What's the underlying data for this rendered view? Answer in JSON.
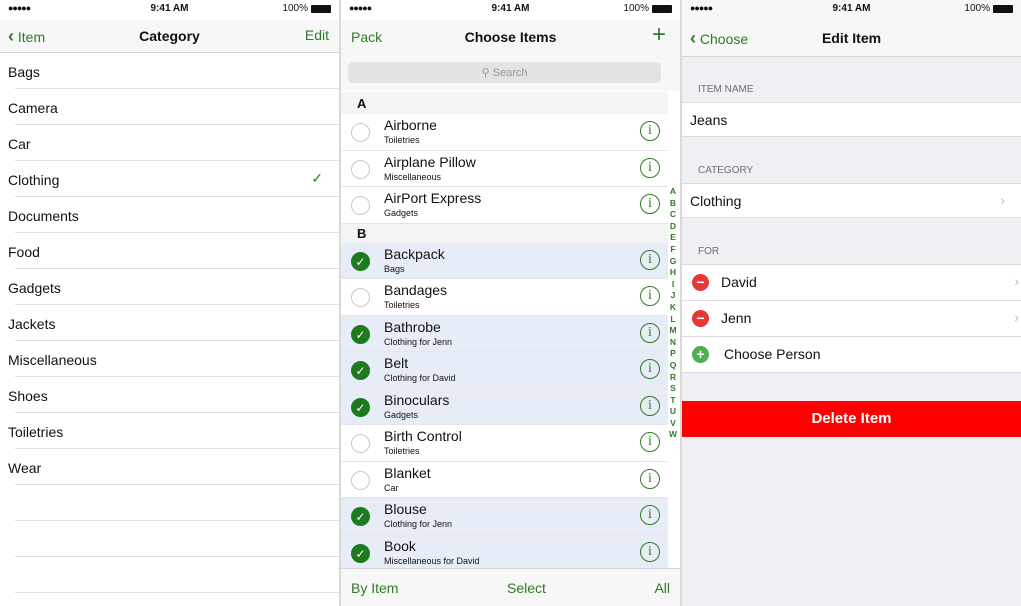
{
  "status": {
    "signal": "●●●●●",
    "time": "9:41 AM",
    "battery": "100%"
  },
  "colors": {
    "accent": "#2f7a24",
    "delete": "#ff0000",
    "remove": "#e53935",
    "add": "#4caf50",
    "selected_row": "#e6edf7"
  },
  "category_screen": {
    "back_label": "Item",
    "title": "Category",
    "edit_label": "Edit",
    "items": [
      {
        "label": "Bags"
      },
      {
        "label": "Camera"
      },
      {
        "label": "Car"
      },
      {
        "label": "Clothing",
        "checked": true
      },
      {
        "label": "Documents"
      },
      {
        "label": "Food"
      },
      {
        "label": "Gadgets"
      },
      {
        "label": "Jackets"
      },
      {
        "label": "Miscellaneous"
      },
      {
        "label": "Shoes"
      },
      {
        "label": "Toiletries"
      },
      {
        "label": "Wear"
      }
    ],
    "checkmark": "✓"
  },
  "choose_screen": {
    "left_label": "Pack",
    "title": "Choose Items",
    "add_icon": "+",
    "search_placeholder": "Search",
    "sections": [
      {
        "header": "A",
        "items": [
          {
            "name": "Airborne",
            "sub": "Toiletries",
            "selected": false
          },
          {
            "name": "Airplane Pillow",
            "sub": "Miscellaneous",
            "selected": false
          },
          {
            "name": "AirPort Express",
            "sub": "Gadgets",
            "selected": false
          }
        ]
      },
      {
        "header": "B",
        "items": [
          {
            "name": "Backpack",
            "sub": "Bags",
            "selected": true
          },
          {
            "name": "Bandages",
            "sub": "Toiletries",
            "selected": false
          },
          {
            "name": "Bathrobe",
            "sub": "Clothing for Jenn",
            "selected": true
          },
          {
            "name": "Belt",
            "sub": "Clothing for David",
            "selected": true
          },
          {
            "name": "Binoculars",
            "sub": "Gadgets",
            "selected": true
          },
          {
            "name": "Birth Control",
            "sub": "Toiletries",
            "selected": false
          },
          {
            "name": "Blanket",
            "sub": "Car",
            "selected": false
          },
          {
            "name": "Blouse",
            "sub": "Clothing for Jenn",
            "selected": true
          },
          {
            "name": "Book",
            "sub": "Miscellaneous for David",
            "selected": true
          }
        ]
      }
    ],
    "index": [
      "A",
      "B",
      "C",
      "D",
      "E",
      "F",
      "G",
      "H",
      "I",
      "J",
      "K",
      "L",
      "M",
      "N",
      "P",
      "Q",
      "R",
      "S",
      "T",
      "U",
      "V",
      "W"
    ],
    "toolbar": {
      "by_item": "By Item",
      "select": "Select",
      "all": "All"
    }
  },
  "edit_screen": {
    "back_label": "Choose",
    "title": "Edit Item",
    "item_name_label": "ITEM NAME",
    "item_name": "Jeans",
    "category_label": "CATEGORY",
    "category": "Clothing",
    "for_label": "FOR",
    "people": [
      "David",
      "Jenn"
    ],
    "choose_person": "Choose Person",
    "delete_label": "Delete Item"
  }
}
